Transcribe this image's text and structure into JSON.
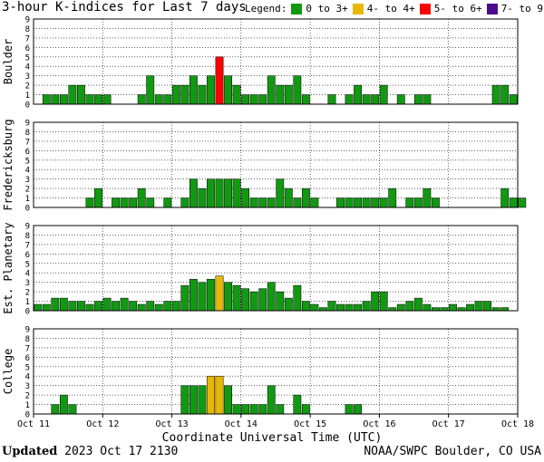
{
  "title": "3-hour K-indices for Last 7 days",
  "legend": {
    "label": "Legend:",
    "items": [
      {
        "label": "0 to 3+",
        "color": "#119911"
      },
      {
        "label": "4- to 4+",
        "color": "#e8b800"
      },
      {
        "label": "5- to 6+",
        "color": "#ff0000"
      },
      {
        "label": "7- to 9",
        "color": "#4a0c8c"
      }
    ]
  },
  "chart_data": {
    "type": "bar",
    "x_tick_labels": [
      "Oct 11",
      "Oct 12",
      "Oct 13",
      "Oct 14",
      "Oct 15",
      "Oct 16",
      "Oct 17",
      "Oct 18"
    ],
    "xlabel": "Coordinate Universal Time (UTC)",
    "y_ticks": [
      "0",
      "1",
      "2",
      "3",
      "4",
      "5",
      "6",
      "7",
      "8",
      "9"
    ],
    "ylim": [
      0,
      9
    ],
    "panels": [
      {
        "name": "Boulder",
        "values": [
          0,
          1,
          1,
          1,
          2,
          2,
          1,
          1,
          1,
          0,
          0,
          0,
          1,
          3,
          1,
          1,
          2,
          2,
          3,
          2,
          3,
          5,
          3,
          2,
          1,
          1,
          1,
          3,
          2,
          2,
          3,
          1,
          0,
          0,
          1,
          0,
          1,
          2,
          1,
          1,
          2,
          0,
          1,
          0,
          1,
          1,
          0,
          0,
          0,
          0,
          0,
          0,
          0,
          2,
          2,
          1,
          0
        ]
      },
      {
        "name": "Fredericksburg",
        "values": [
          0,
          0,
          0,
          0,
          0,
          0,
          1,
          2,
          0,
          1,
          1,
          1,
          2,
          1,
          0,
          1,
          0,
          1,
          3,
          2,
          3,
          3,
          3,
          3,
          2,
          1,
          1,
          1,
          3,
          2,
          1,
          2,
          1,
          0,
          0,
          1,
          1,
          1,
          1,
          1,
          1,
          2,
          0,
          1,
          1,
          2,
          1,
          0,
          0,
          0,
          0,
          0,
          0,
          0,
          2,
          1,
          1
        ]
      },
      {
        "name": "Est. Planetary",
        "values": [
          0.67,
          0.67,
          1.33,
          1.33,
          1,
          1,
          0.67,
          1,
          1.33,
          1,
          1.33,
          1,
          0.67,
          1,
          0.67,
          1,
          1,
          2.67,
          3.33,
          3,
          3.33,
          3.67,
          3,
          2.67,
          2.33,
          2,
          2.33,
          3,
          2,
          1.33,
          2.67,
          1,
          0.67,
          0.33,
          1,
          0.67,
          0.67,
          0.67,
          1,
          2,
          2,
          0.33,
          0.67,
          1,
          1.33,
          0.67,
          0.33,
          0.33,
          0.67,
          0.33,
          0.67,
          1,
          1,
          0.33,
          0.33,
          0,
          0
        ]
      },
      {
        "name": "College",
        "values": [
          0,
          0,
          1,
          2,
          1,
          0,
          0,
          0,
          0,
          0,
          0,
          0,
          0,
          0,
          0,
          0,
          0,
          3,
          3,
          3,
          4,
          4,
          3,
          1,
          1,
          1,
          1,
          3,
          1,
          0,
          2,
          1,
          0,
          0,
          0,
          0,
          1,
          1,
          0,
          0,
          0,
          0,
          0,
          0,
          0,
          0,
          0,
          0,
          0,
          0,
          0,
          0,
          0,
          0,
          0,
          0,
          0
        ]
      }
    ]
  },
  "footer": {
    "updated_label": "Updated",
    "updated_value": "2023 Oct 17 2130",
    "credit": "NOAA/SWPC Boulder, CO USA"
  }
}
